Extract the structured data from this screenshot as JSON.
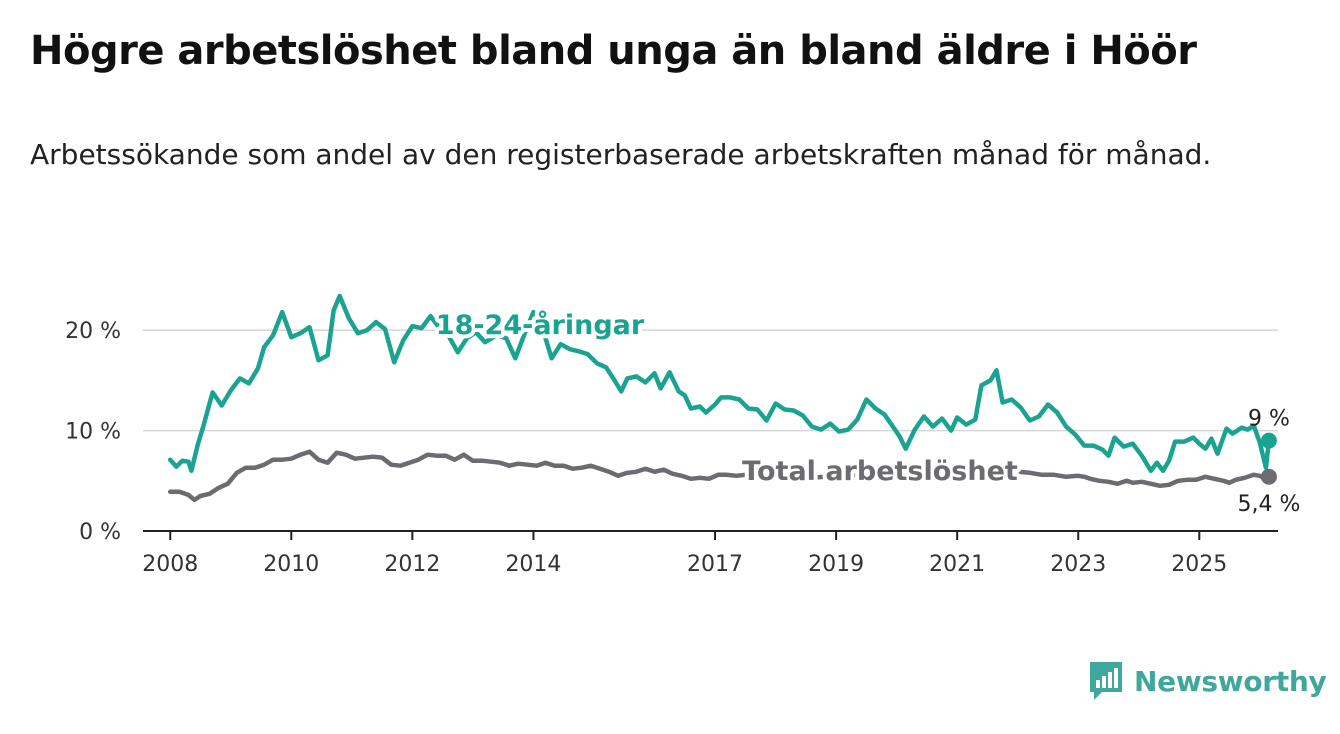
{
  "title": "Högre arbetslöshet bland unga än bland äldre i Höör",
  "subtitle": "Arbetssökande som andel av den registerbaserade arbetskraften månad för månad.",
  "brand": {
    "name": "Newsworthy",
    "icon": "newsworthy-logo-icon",
    "color": "#3fa79c"
  },
  "chart_data": {
    "type": "line",
    "y_ticks": [
      {
        "value": 0,
        "label": "0 %"
      },
      {
        "value": 10,
        "label": "10 %"
      },
      {
        "value": 20,
        "label": "20 %"
      }
    ],
    "x_ticks": [
      {
        "value": 2008,
        "label": "2008"
      },
      {
        "value": 2010,
        "label": "2010"
      },
      {
        "value": 2012,
        "label": "2012"
      },
      {
        "value": 2014,
        "label": "2014"
      },
      {
        "value": 2017,
        "label": "2017"
      },
      {
        "value": 2019,
        "label": "2019"
      },
      {
        "value": 2021,
        "label": "2021"
      },
      {
        "value": 2023,
        "label": "2023"
      },
      {
        "value": 2025,
        "label": "2025"
      }
    ],
    "xlim": [
      2007.55,
      2026.3
    ],
    "ylim": [
      0,
      24
    ],
    "grid": true,
    "series": [
      {
        "name": "18-24-åringar",
        "color": "#1aa391",
        "end_label": "9 %",
        "points": [
          [
            2008.0,
            7.1
          ],
          [
            2008.1,
            6.4
          ],
          [
            2008.2,
            7.0
          ],
          [
            2008.3,
            6.9
          ],
          [
            2008.35,
            6.0
          ],
          [
            2008.45,
            8.5
          ],
          [
            2008.55,
            10.5
          ],
          [
            2008.7,
            13.8
          ],
          [
            2008.85,
            12.5
          ],
          [
            2009.0,
            14.0
          ],
          [
            2009.15,
            15.2
          ],
          [
            2009.3,
            14.7
          ],
          [
            2009.45,
            16.2
          ],
          [
            2009.55,
            18.3
          ],
          [
            2009.7,
            19.5
          ],
          [
            2009.85,
            21.8
          ],
          [
            2010.0,
            19.3
          ],
          [
            2010.15,
            19.7
          ],
          [
            2010.3,
            20.3
          ],
          [
            2010.45,
            17.0
          ],
          [
            2010.6,
            17.5
          ],
          [
            2010.7,
            22.0
          ],
          [
            2010.8,
            23.4
          ],
          [
            2010.95,
            21.2
          ],
          [
            2011.1,
            19.7
          ],
          [
            2011.25,
            20.0
          ],
          [
            2011.4,
            20.8
          ],
          [
            2011.55,
            20.1
          ],
          [
            2011.7,
            16.8
          ],
          [
            2011.85,
            19.0
          ],
          [
            2012.0,
            20.4
          ],
          [
            2012.15,
            20.2
          ],
          [
            2012.3,
            21.4
          ],
          [
            2012.45,
            20.2
          ],
          [
            2012.6,
            19.4
          ],
          [
            2012.75,
            17.8
          ],
          [
            2012.9,
            19.2
          ],
          [
            2013.05,
            19.8
          ],
          [
            2013.2,
            18.8
          ],
          [
            2013.4,
            19.5
          ],
          [
            2013.55,
            19.2
          ],
          [
            2013.7,
            17.2
          ],
          [
            2013.85,
            19.6
          ],
          [
            2014.0,
            21.8
          ],
          [
            2014.15,
            20.2
          ],
          [
            2014.3,
            17.2
          ],
          [
            2014.45,
            18.6
          ],
          [
            2014.6,
            18.1
          ],
          [
            2014.75,
            17.9
          ],
          [
            2014.9,
            17.6
          ],
          [
            2015.05,
            16.7
          ],
          [
            2015.2,
            16.3
          ],
          [
            2015.35,
            14.9
          ],
          [
            2015.45,
            13.9
          ],
          [
            2015.55,
            15.2
          ],
          [
            2015.7,
            15.4
          ],
          [
            2015.85,
            14.8
          ],
          [
            2016.0,
            15.7
          ],
          [
            2016.1,
            14.2
          ],
          [
            2016.25,
            15.8
          ],
          [
            2016.4,
            13.9
          ],
          [
            2016.5,
            13.5
          ],
          [
            2016.6,
            12.2
          ],
          [
            2016.75,
            12.4
          ],
          [
            2016.85,
            11.8
          ],
          [
            2017.0,
            12.6
          ],
          [
            2017.1,
            13.3
          ],
          [
            2017.25,
            13.3
          ],
          [
            2017.4,
            13.1
          ],
          [
            2017.55,
            12.2
          ],
          [
            2017.7,
            12.1
          ],
          [
            2017.85,
            11.0
          ],
          [
            2018.0,
            12.7
          ],
          [
            2018.15,
            12.1
          ],
          [
            2018.3,
            12.0
          ],
          [
            2018.45,
            11.5
          ],
          [
            2018.6,
            10.4
          ],
          [
            2018.75,
            10.1
          ],
          [
            2018.9,
            10.7
          ],
          [
            2019.05,
            9.9
          ],
          [
            2019.2,
            10.1
          ],
          [
            2019.35,
            11.1
          ],
          [
            2019.5,
            13.1
          ],
          [
            2019.65,
            12.2
          ],
          [
            2019.8,
            11.6
          ],
          [
            2019.95,
            10.3
          ],
          [
            2020.05,
            9.4
          ],
          [
            2020.15,
            8.2
          ],
          [
            2020.3,
            10.1
          ],
          [
            2020.45,
            11.4
          ],
          [
            2020.6,
            10.4
          ],
          [
            2020.75,
            11.2
          ],
          [
            2020.9,
            10.0
          ],
          [
            2021.0,
            11.3
          ],
          [
            2021.15,
            10.6
          ],
          [
            2021.3,
            11.1
          ],
          [
            2021.4,
            14.5
          ],
          [
            2021.55,
            15.0
          ],
          [
            2021.65,
            16.0
          ],
          [
            2021.75,
            12.8
          ],
          [
            2021.9,
            13.1
          ],
          [
            2022.05,
            12.3
          ],
          [
            2022.2,
            11.0
          ],
          [
            2022.35,
            11.4
          ],
          [
            2022.5,
            12.6
          ],
          [
            2022.65,
            11.8
          ],
          [
            2022.8,
            10.4
          ],
          [
            2022.95,
            9.6
          ],
          [
            2023.1,
            8.5
          ],
          [
            2023.25,
            8.5
          ],
          [
            2023.4,
            8.1
          ],
          [
            2023.5,
            7.5
          ],
          [
            2023.6,
            9.3
          ],
          [
            2023.75,
            8.4
          ],
          [
            2023.9,
            8.7
          ],
          [
            2024.05,
            7.5
          ],
          [
            2024.2,
            6.0
          ],
          [
            2024.3,
            6.8
          ],
          [
            2024.4,
            6.0
          ],
          [
            2024.5,
            7.0
          ],
          [
            2024.6,
            8.9
          ],
          [
            2024.75,
            8.9
          ],
          [
            2024.9,
            9.3
          ],
          [
            2025.0,
            8.7
          ],
          [
            2025.1,
            8.2
          ],
          [
            2025.2,
            9.2
          ],
          [
            2025.3,
            7.7
          ],
          [
            2025.45,
            10.2
          ],
          [
            2025.55,
            9.7
          ],
          [
            2025.7,
            10.3
          ],
          [
            2025.8,
            10.1
          ],
          [
            2025.9,
            10.5
          ],
          [
            2026.0,
            8.8
          ],
          [
            2026.1,
            6.3
          ],
          [
            2026.15,
            9.0
          ]
        ]
      },
      {
        "name": "Total arbetslöshet",
        "color": "#6d6a72",
        "end_label": "5,4 %",
        "points": [
          [
            2008.0,
            3.9
          ],
          [
            2008.15,
            3.9
          ],
          [
            2008.3,
            3.6
          ],
          [
            2008.4,
            3.1
          ],
          [
            2008.5,
            3.5
          ],
          [
            2008.65,
            3.7
          ],
          [
            2008.8,
            4.3
          ],
          [
            2008.95,
            4.7
          ],
          [
            2009.1,
            5.8
          ],
          [
            2009.25,
            6.3
          ],
          [
            2009.4,
            6.3
          ],
          [
            2009.55,
            6.6
          ],
          [
            2009.7,
            7.1
          ],
          [
            2009.85,
            7.1
          ],
          [
            2010.0,
            7.2
          ],
          [
            2010.15,
            7.6
          ],
          [
            2010.3,
            7.9
          ],
          [
            2010.45,
            7.1
          ],
          [
            2010.6,
            6.8
          ],
          [
            2010.75,
            7.8
          ],
          [
            2010.9,
            7.6
          ],
          [
            2011.05,
            7.2
          ],
          [
            2011.2,
            7.3
          ],
          [
            2011.35,
            7.4
          ],
          [
            2011.5,
            7.3
          ],
          [
            2011.65,
            6.6
          ],
          [
            2011.8,
            6.5
          ],
          [
            2011.95,
            6.8
          ],
          [
            2012.1,
            7.1
          ],
          [
            2012.25,
            7.6
          ],
          [
            2012.4,
            7.5
          ],
          [
            2012.55,
            7.5
          ],
          [
            2012.7,
            7.1
          ],
          [
            2012.85,
            7.6
          ],
          [
            2013.0,
            7.0
          ],
          [
            2013.15,
            7.0
          ],
          [
            2013.3,
            6.9
          ],
          [
            2013.45,
            6.8
          ],
          [
            2013.6,
            6.5
          ],
          [
            2013.75,
            6.7
          ],
          [
            2013.9,
            6.6
          ],
          [
            2014.05,
            6.5
          ],
          [
            2014.2,
            6.8
          ],
          [
            2014.35,
            6.5
          ],
          [
            2014.5,
            6.5
          ],
          [
            2014.65,
            6.2
          ],
          [
            2014.8,
            6.3
          ],
          [
            2014.95,
            6.5
          ],
          [
            2015.1,
            6.2
          ],
          [
            2015.25,
            5.9
          ],
          [
            2015.4,
            5.5
          ],
          [
            2015.55,
            5.8
          ],
          [
            2015.7,
            5.9
          ],
          [
            2015.85,
            6.2
          ],
          [
            2016.0,
            5.9
          ],
          [
            2016.15,
            6.1
          ],
          [
            2016.3,
            5.7
          ],
          [
            2016.45,
            5.5
          ],
          [
            2016.6,
            5.2
          ],
          [
            2016.75,
            5.3
          ],
          [
            2016.9,
            5.2
          ],
          [
            2017.05,
            5.6
          ],
          [
            2017.2,
            5.6
          ],
          [
            2017.35,
            5.5
          ],
          [
            2017.5,
            5.6
          ],
          [
            2017.65,
            5.3
          ],
          [
            2017.8,
            5.2
          ],
          [
            2018.0,
            5.4
          ],
          [
            2018.2,
            5.3
          ],
          [
            2018.4,
            5.4
          ],
          [
            2018.6,
            5.3
          ],
          [
            2018.8,
            5.4
          ],
          [
            2019.0,
            5.4
          ],
          [
            2019.2,
            5.5
          ],
          [
            2019.4,
            5.6
          ],
          [
            2019.6,
            5.5
          ],
          [
            2019.8,
            5.3
          ],
          [
            2020.0,
            5.2
          ],
          [
            2020.2,
            5.2
          ],
          [
            2020.4,
            5.5
          ],
          [
            2020.6,
            5.5
          ],
          [
            2020.8,
            5.4
          ],
          [
            2021.0,
            5.6
          ],
          [
            2021.2,
            5.8
          ],
          [
            2021.4,
            6.1
          ],
          [
            2021.6,
            6.2
          ],
          [
            2021.8,
            6.1
          ],
          [
            2022.0,
            5.9
          ],
          [
            2022.2,
            5.8
          ],
          [
            2022.4,
            5.6
          ],
          [
            2022.6,
            5.6
          ],
          [
            2022.8,
            5.4
          ],
          [
            2023.0,
            5.5
          ],
          [
            2023.1,
            5.4
          ],
          [
            2023.2,
            5.2
          ],
          [
            2023.35,
            5.0
          ],
          [
            2023.5,
            4.9
          ],
          [
            2023.65,
            4.7
          ],
          [
            2023.8,
            5.0
          ],
          [
            2023.9,
            4.8
          ],
          [
            2024.05,
            4.9
          ],
          [
            2024.2,
            4.7
          ],
          [
            2024.35,
            4.5
          ],
          [
            2024.5,
            4.6
          ],
          [
            2024.65,
            5.0
          ],
          [
            2024.8,
            5.1
          ],
          [
            2024.95,
            5.1
          ],
          [
            2025.1,
            5.4
          ],
          [
            2025.25,
            5.2
          ],
          [
            2025.4,
            5.0
          ],
          [
            2025.5,
            4.8
          ],
          [
            2025.6,
            5.1
          ],
          [
            2025.75,
            5.3
          ],
          [
            2025.9,
            5.6
          ],
          [
            2026.0,
            5.5
          ],
          [
            2026.1,
            5.1
          ],
          [
            2026.15,
            5.4
          ]
        ]
      }
    ]
  }
}
